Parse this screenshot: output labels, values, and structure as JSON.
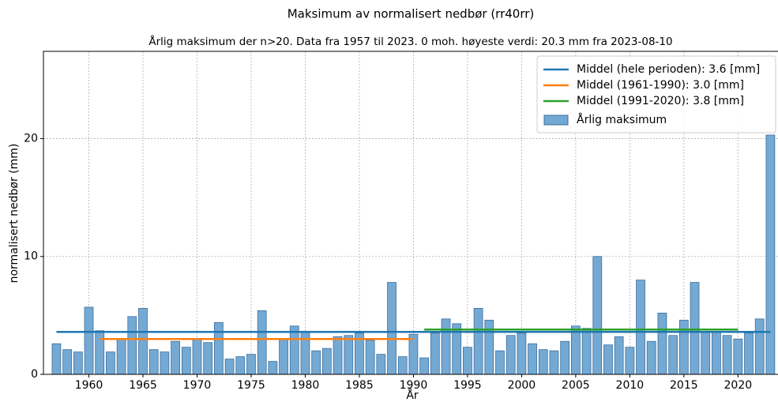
{
  "chart_data": {
    "type": "bar",
    "title": "Maksimum av normalisert nedbør (rr40rr)",
    "subtitle": "Årlig maksimum der n>20. Data fra 1957 til 2023. 0 moh. høyeste verdi: 20.3 mm fra 2023-08-10",
    "x_label": "År",
    "y_label": "normalisert nedbør (mm)",
    "x": [
      1957,
      1958,
      1959,
      1960,
      1961,
      1962,
      1963,
      1964,
      1965,
      1966,
      1967,
      1968,
      1969,
      1970,
      1971,
      1972,
      1973,
      1974,
      1975,
      1976,
      1977,
      1978,
      1979,
      1980,
      1981,
      1982,
      1983,
      1984,
      1985,
      1986,
      1987,
      1988,
      1989,
      1990,
      1991,
      1992,
      1993,
      1994,
      1995,
      1996,
      1997,
      1998,
      1999,
      2000,
      2001,
      2002,
      2003,
      2004,
      2005,
      2006,
      2007,
      2008,
      2009,
      2010,
      2011,
      2012,
      2013,
      2014,
      2015,
      2016,
      2017,
      2018,
      2019,
      2020,
      2021,
      2022,
      2023
    ],
    "series": [
      {
        "name": "Årlig maksimum",
        "color": "#74a9d4",
        "edge_color": "#3b6e9e",
        "values": [
          2.6,
          2.1,
          1.9,
          5.7,
          3.7,
          1.9,
          3.0,
          4.9,
          5.6,
          2.1,
          1.9,
          2.8,
          2.3,
          3.0,
          2.7,
          4.4,
          1.3,
          1.5,
          1.7,
          5.4,
          1.1,
          3.0,
          4.1,
          3.6,
          2.0,
          2.2,
          3.2,
          3.3,
          3.5,
          2.9,
          1.7,
          7.8,
          1.5,
          3.4,
          1.4,
          3.5,
          4.7,
          4.3,
          2.3,
          5.6,
          4.6,
          2.0,
          3.3,
          3.5,
          2.6,
          2.1,
          2.0,
          2.8,
          4.1,
          3.9,
          10.0,
          2.5,
          3.2,
          2.3,
          8.0,
          2.8,
          5.2,
          3.3,
          4.6,
          7.8,
          3.6,
          3.6,
          3.3,
          3.0,
          3.5,
          4.7,
          20.3
        ]
      }
    ],
    "mean_lines": [
      {
        "name": "Middel (hele perioden): 3.6 [mm]",
        "color": "#1f77b4",
        "x": [
          1957,
          2023
        ],
        "values": [
          3.6,
          3.6
        ]
      },
      {
        "name": "Middel (1961-1990): 3.0 [mm]",
        "color": "#ff7f0e",
        "x": [
          1961,
          1990
        ],
        "values": [
          3.0,
          3.0
        ]
      },
      {
        "name": "Middel (1991-2020): 3.8 [mm]",
        "color": "#2ca02c",
        "x": [
          1991,
          2020
        ],
        "values": [
          3.8,
          3.8
        ]
      }
    ],
    "xlim": [
      1955.8,
      2023.7
    ],
    "ylim": [
      0,
      27.4
    ],
    "xticks": [
      1960,
      1965,
      1970,
      1975,
      1980,
      1985,
      1990,
      1995,
      2000,
      2005,
      2010,
      2015,
      2020
    ],
    "yticks": [
      0,
      10,
      20
    ],
    "grid": true,
    "legend": "upper right"
  }
}
